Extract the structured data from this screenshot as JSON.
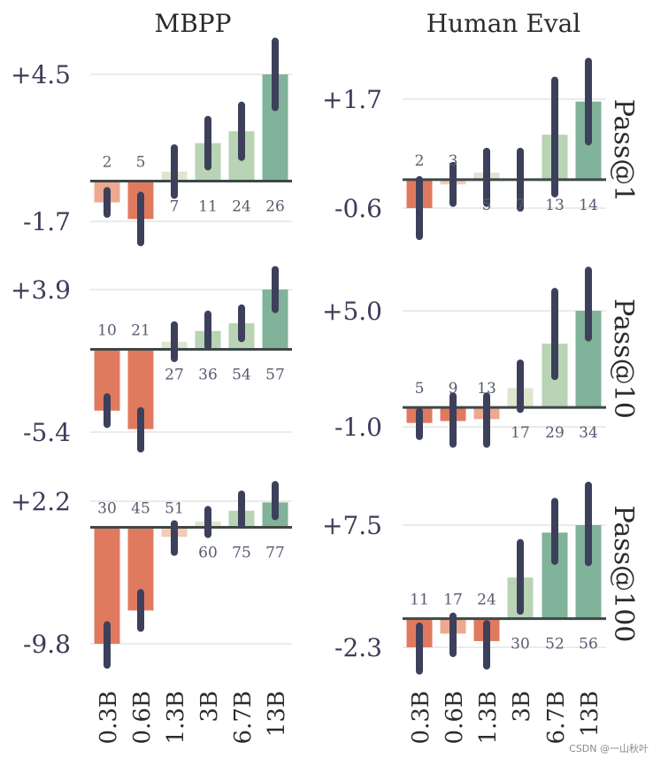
{
  "chart_data": {
    "type": "bar",
    "columns": [
      "MBPP",
      "Human Eval"
    ],
    "rows": [
      "Pass@1",
      "Pass@10",
      "Pass@100"
    ],
    "categories": [
      "0.3B",
      "0.6B",
      "1.3B",
      "3B",
      "6.7B",
      "13B"
    ],
    "panels": [
      {
        "column": "MBPP",
        "row": "Pass@1",
        "ytick_labels": [
          "+4.5",
          "-1.7"
        ],
        "ytick_values": [
          4.5,
          -1.7
        ],
        "values": [
          -0.9,
          -1.6,
          0.4,
          1.6,
          2.1,
          4.5
        ],
        "error_low": [
          -1.4,
          -2.6,
          -0.6,
          0.6,
          1.0,
          3.1
        ],
        "error_high": [
          -0.4,
          -0.6,
          1.4,
          2.6,
          3.2,
          5.9
        ],
        "counts": [
          "2",
          "5",
          "7",
          "11",
          "24",
          "26"
        ]
      },
      {
        "column": "Human Eval",
        "row": "Pass@1",
        "ytick_labels": [
          "+1.7",
          "-0.6"
        ],
        "ytick_values": [
          1.7,
          -0.6
        ],
        "values": [
          -0.6,
          -0.1,
          0.15,
          0.0,
          0.95,
          1.65
        ],
        "error_low": [
          -1.2,
          -0.5,
          -0.5,
          -0.6,
          -0.3,
          0.8
        ],
        "error_high": [
          0.0,
          0.3,
          0.6,
          0.6,
          2.1,
          2.5
        ],
        "counts": [
          "2",
          "3",
          "5",
          "7",
          "13",
          "14"
        ]
      },
      {
        "column": "MBPP",
        "row": "Pass@10",
        "ytick_labels": [
          "+3.9",
          "-5.4"
        ],
        "ytick_values": [
          3.9,
          -5.4
        ],
        "values": [
          -4.0,
          -5.2,
          0.5,
          1.2,
          1.7,
          3.9
        ],
        "error_low": [
          -4.9,
          -6.5,
          -0.6,
          0.2,
          0.7,
          2.6
        ],
        "error_high": [
          -3.1,
          -4.0,
          1.6,
          2.3,
          2.7,
          5.2
        ],
        "counts": [
          "10",
          "21",
          "27",
          "36",
          "54",
          "57"
        ]
      },
      {
        "column": "Human Eval",
        "row": "Pass@10",
        "ytick_labels": [
          "+5.0",
          "-1.0"
        ],
        "ytick_values": [
          5.0,
          -1.0
        ],
        "values": [
          -0.8,
          -0.7,
          -0.6,
          1.0,
          3.3,
          5.0
        ],
        "error_low": [
          -1.5,
          -1.9,
          -1.9,
          -0.1,
          1.6,
          3.6
        ],
        "error_high": [
          -0.2,
          0.6,
          0.6,
          2.3,
          6.0,
          7.1
        ],
        "counts": [
          "5",
          "9",
          "13",
          "17",
          "29",
          "34"
        ]
      },
      {
        "column": "MBPP",
        "row": "Pass@100",
        "ytick_labels": [
          "+2.2",
          "-9.8"
        ],
        "ytick_values": [
          2.2,
          -9.8
        ],
        "values": [
          -9.8,
          -7.0,
          -0.8,
          0.5,
          1.4,
          2.1
        ],
        "error_low": [
          -11.6,
          -8.5,
          -2.1,
          -0.6,
          0.2,
          0.9
        ],
        "error_high": [
          -8.2,
          -5.5,
          0.3,
          1.5,
          2.8,
          3.6
        ],
        "counts": [
          "30",
          "45",
          "51",
          "60",
          "75",
          "77"
        ]
      },
      {
        "column": "Human Eval",
        "row": "Pass@100",
        "ytick_labels": [
          "+7.5",
          "-2.3"
        ],
        "ytick_values": [
          7.5,
          -2.3
        ],
        "values": [
          -2.3,
          -1.2,
          -1.8,
          3.3,
          6.9,
          7.5
        ],
        "error_low": [
          -4.2,
          -2.8,
          -3.8,
          0.6,
          4.6,
          4.5
        ],
        "error_high": [
          -0.6,
          0.2,
          -0.4,
          6.1,
          9.4,
          10.7
        ],
        "counts": [
          "11",
          "17",
          "24",
          "30",
          "52",
          "56"
        ]
      }
    ],
    "colors": {
      "strong_negative": "#e07a5f",
      "negative": "#eca98f",
      "weak_negative": "#f2ccb4",
      "weak_positive": "#dfe6cf",
      "positive": "#b9d3b5",
      "strong_positive": "#81b29a",
      "error_bar": "#3d405b",
      "baseline": "#3e4747",
      "grid": "#ebebeb"
    },
    "grid": true,
    "legend": "none"
  },
  "watermark": "CSDN @一山秋叶"
}
